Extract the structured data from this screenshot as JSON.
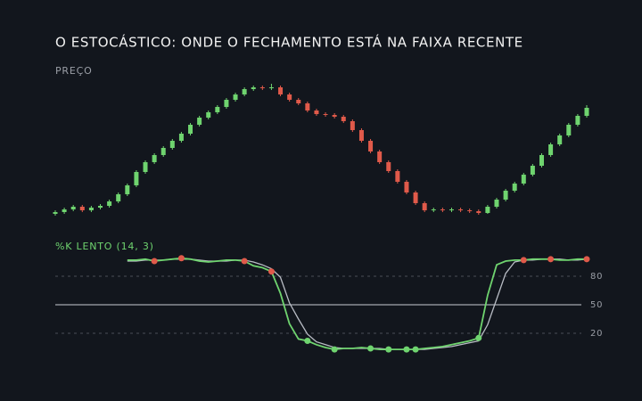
{
  "title": "O ESTOCÁSTICO: ONDE O FECHAMENTO ESTÁ NA FAIXA RECENTE",
  "chart_data": [
    {
      "type": "candlestick",
      "title": "PREÇO",
      "ylim": [
        0,
        160
      ],
      "up_color": "#6fd46f",
      "down_color": "#e05a4a",
      "ohlc": [
        [
          8,
          12,
          6,
          10
        ],
        [
          10,
          15,
          8,
          13
        ],
        [
          13,
          18,
          11,
          16
        ],
        [
          16,
          18,
          10,
          12
        ],
        [
          12,
          17,
          10,
          15
        ],
        [
          15,
          19,
          13,
          17
        ],
        [
          17,
          24,
          15,
          22
        ],
        [
          22,
          32,
          20,
          30
        ],
        [
          30,
          42,
          28,
          40
        ],
        [
          40,
          57,
          38,
          55
        ],
        [
          55,
          68,
          53,
          66
        ],
        [
          66,
          76,
          64,
          74
        ],
        [
          74,
          84,
          72,
          82
        ],
        [
          82,
          92,
          80,
          90
        ],
        [
          90,
          100,
          88,
          98
        ],
        [
          98,
          110,
          96,
          108
        ],
        [
          108,
          118,
          106,
          116
        ],
        [
          116,
          124,
          114,
          122
        ],
        [
          122,
          130,
          120,
          128
        ],
        [
          128,
          138,
          126,
          136
        ],
        [
          136,
          144,
          134,
          142
        ],
        [
          142,
          150,
          140,
          148
        ],
        [
          148,
          152,
          146,
          150
        ],
        [
          150,
          152,
          147,
          149
        ],
        [
          149,
          154,
          147,
          150
        ],
        [
          150,
          152,
          140,
          142
        ],
        [
          142,
          144,
          134,
          136
        ],
        [
          136,
          138,
          130,
          132
        ],
        [
          132,
          134,
          122,
          124
        ],
        [
          124,
          126,
          118,
          120
        ],
        [
          120,
          122,
          117,
          119
        ],
        [
          119,
          121,
          115,
          117
        ],
        [
          117,
          119,
          110,
          112
        ],
        [
          112,
          114,
          100,
          102
        ],
        [
          102,
          104,
          88,
          90
        ],
        [
          90,
          92,
          76,
          78
        ],
        [
          78,
          80,
          64,
          66
        ],
        [
          66,
          68,
          54,
          56
        ],
        [
          56,
          58,
          42,
          44
        ],
        [
          44,
          46,
          30,
          32
        ],
        [
          32,
          34,
          18,
          20
        ],
        [
          20,
          22,
          10,
          12
        ],
        [
          12,
          15,
          10,
          13
        ],
        [
          13,
          15,
          10,
          12
        ],
        [
          12,
          15,
          10,
          13
        ],
        [
          13,
          15,
          10,
          12
        ],
        [
          12,
          14,
          9,
          11
        ],
        [
          11,
          13,
          7,
          9
        ],
        [
          9,
          18,
          8,
          16
        ],
        [
          16,
          26,
          14,
          24
        ],
        [
          24,
          36,
          22,
          34
        ],
        [
          34,
          44,
          32,
          42
        ],
        [
          42,
          54,
          40,
          52
        ],
        [
          52,
          64,
          50,
          62
        ],
        [
          62,
          76,
          60,
          74
        ],
        [
          74,
          88,
          72,
          86
        ],
        [
          86,
          98,
          84,
          96
        ],
        [
          96,
          110,
          94,
          108
        ],
        [
          108,
          120,
          106,
          118
        ],
        [
          118,
          130,
          116,
          127
        ]
      ]
    },
    {
      "type": "line",
      "ylim": [
        0,
        100
      ],
      "yticks": [
        80,
        50,
        20
      ],
      "series": [
        {
          "name": "%K LENTO (14, 3)",
          "color": "#6fd46f",
          "values": [
            null,
            null,
            null,
            null,
            null,
            null,
            null,
            null,
            97,
            97,
            98,
            96,
            97,
            98,
            99,
            98,
            96,
            95,
            96,
            97,
            97,
            96,
            91,
            89,
            85,
            62,
            30,
            14,
            12,
            8,
            5,
            3,
            4,
            4,
            5,
            4,
            3,
            3,
            3,
            3,
            3,
            4,
            5,
            6,
            8,
            10,
            12,
            15,
            60,
            92,
            96,
            97,
            97,
            98,
            98,
            98,
            97,
            97,
            98,
            98
          ],
          "marker_colors": [
            null,
            null,
            null,
            null,
            null,
            null,
            null,
            null,
            null,
            null,
            null,
            "#e05a4a",
            null,
            null,
            "#e05a4a",
            null,
            null,
            null,
            null,
            null,
            null,
            "#e05a4a",
            null,
            null,
            "#e05a4a",
            null,
            null,
            null,
            "#6fd46f",
            null,
            null,
            "#6fd46f",
            null,
            null,
            null,
            "#6fd46f",
            null,
            "#6fd46f",
            null,
            "#6fd46f",
            "#6fd46f",
            null,
            null,
            null,
            null,
            null,
            null,
            "#6fd46f",
            null,
            null,
            null,
            null,
            "#e05a4a",
            null,
            null,
            "#e05a4a",
            null,
            null,
            null,
            "#e05a4a"
          ]
        },
        {
          "color": "#b8bcc4",
          "values": [
            null,
            null,
            null,
            null,
            null,
            null,
            null,
            null,
            96,
            96,
            97,
            97,
            97,
            98,
            98,
            98,
            97,
            96,
            96,
            96,
            97,
            97,
            95,
            92,
            88,
            79,
            52,
            35,
            19,
            11,
            8,
            5,
            4,
            4,
            4,
            4,
            4,
            3,
            3,
            3,
            3,
            3,
            4,
            5,
            6,
            8,
            10,
            12,
            29,
            56,
            83,
            95,
            97,
            97,
            98,
            98,
            98,
            97,
            97,
            98
          ]
        }
      ]
    }
  ]
}
